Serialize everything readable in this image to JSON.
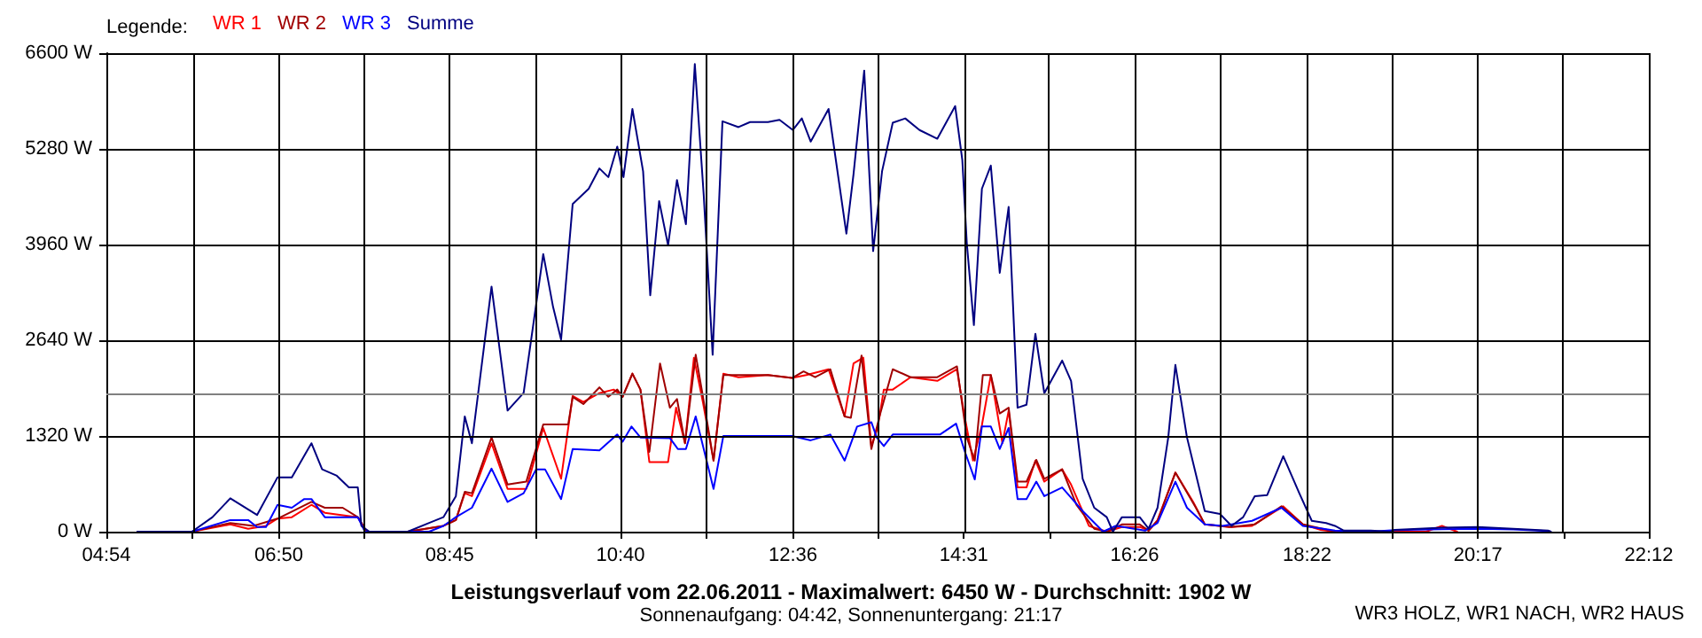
{
  "chart_data": {
    "type": "line",
    "title": "Leistungsverlauf vom 22.06.2011 - Maximalwert: 6450 W - Durchschnitt: 1902 W",
    "subtitle": "Sonnenaufgang: 04:42, Sonnenuntergang: 21:17",
    "legend_title": "Legende:",
    "annotations": [
      "WR3 HOLZ, WR1 NACH, WR2 HAUS"
    ],
    "xlim": [
      4.9,
      22.2
    ],
    "xticks": [
      {
        "value": 4.9,
        "label": "04:54"
      },
      {
        "value": 5.8667,
        "label": null
      },
      {
        "value": 6.8333,
        "label": "06:50"
      },
      {
        "value": 7.7917,
        "label": null
      },
      {
        "value": 8.75,
        "label": "08:45"
      },
      {
        "value": 9.7083,
        "label": null
      },
      {
        "value": 10.6667,
        "label": "10:40"
      },
      {
        "value": 11.6333,
        "label": null
      },
      {
        "value": 12.6,
        "label": "12:36"
      },
      {
        "value": 13.5583,
        "label": null
      },
      {
        "value": 14.5167,
        "label": "14:31"
      },
      {
        "value": 15.475,
        "label": null
      },
      {
        "value": 16.4333,
        "label": "16:26"
      },
      {
        "value": 17.4,
        "label": null
      },
      {
        "value": 18.3667,
        "label": "18:22"
      },
      {
        "value": 19.325,
        "label": null
      },
      {
        "value": 20.2833,
        "label": "20:17"
      },
      {
        "value": 21.2417,
        "label": null
      },
      {
        "value": 22.2,
        "label": "22:12"
      }
    ],
    "ylim": [
      0,
      6600
    ],
    "yticks": [
      {
        "value": 0,
        "label": "0 W"
      },
      {
        "value": 1320,
        "label": "1320 W"
      },
      {
        "value": 2640,
        "label": "2640 W"
      },
      {
        "value": 3960,
        "label": "3960 W"
      },
      {
        "value": 5280,
        "label": "5280 W"
      },
      {
        "value": 6600,
        "label": "6600 W"
      }
    ],
    "grid": true,
    "legend": "top left",
    "ref_lines": [
      {
        "axis": "y",
        "value": 1902,
        "color": "#808080"
      }
    ],
    "series": [
      {
        "name": "WR 1",
        "color": "#ff0000",
        "x": [
          5.25,
          5.86,
          6.29,
          6.49,
          6.69,
          6.82,
          6.98,
          7.2,
          7.35,
          7.72,
          7.82,
          8.28,
          8.68,
          8.82,
          8.92,
          9.0,
          9.22,
          9.4,
          9.61,
          9.8,
          10.0,
          10.13,
          10.25,
          10.43,
          10.59,
          10.69,
          10.8,
          10.89,
          10.99,
          11.2,
          11.29,
          11.39,
          11.49,
          11.59,
          11.71,
          11.82,
          11.99,
          12.32,
          12.59,
          12.75,
          13.0,
          13.18,
          13.28,
          13.39,
          13.48,
          13.55,
          13.62,
          13.72,
          13.92,
          14.22,
          14.44,
          14.52,
          14.62,
          14.72,
          14.82,
          14.95,
          15.02,
          15.12,
          15.22,
          15.32,
          15.42,
          15.62,
          15.72,
          15.92,
          16.12,
          16.29,
          16.49,
          16.59,
          16.69,
          16.89,
          17.09,
          17.22,
          17.49,
          17.75,
          18.1,
          18.32,
          18.52,
          18.68,
          19.7,
          19.88,
          20.05
        ],
        "values": [
          0,
          0,
          100,
          40,
          80,
          180,
          200,
          370,
          260,
          200,
          0,
          0,
          80,
          160,
          530,
          490,
          1220,
          590,
          590,
          1430,
          730,
          1870,
          1790,
          1910,
          1960,
          1860,
          2180,
          1960,
          960,
          960,
          1710,
          1220,
          2400,
          1790,
          980,
          2180,
          2130,
          2160,
          2120,
          2160,
          2240,
          1590,
          2320,
          2400,
          1180,
          1430,
          1960,
          1960,
          2130,
          2080,
          2240,
          1630,
          980,
          1470,
          2160,
          1220,
          1670,
          610,
          610,
          980,
          690,
          860,
          650,
          80,
          0,
          65,
          65,
          15,
          160,
          815,
          410,
          100,
          65,
          80,
          350,
          100,
          25,
          0,
          0,
          80,
          0
        ]
      },
      {
        "name": "WR 2",
        "color": "#a00000",
        "x": [
          5.25,
          5.86,
          6.29,
          6.55,
          6.82,
          7.2,
          7.35,
          7.55,
          7.72,
          7.82,
          8.28,
          8.68,
          8.82,
          8.92,
          9.0,
          9.22,
          9.4,
          9.61,
          9.8,
          10.08,
          10.13,
          10.25,
          10.43,
          10.53,
          10.63,
          10.69,
          10.8,
          10.89,
          10.99,
          11.11,
          11.22,
          11.3,
          11.39,
          11.51,
          11.59,
          11.71,
          11.82,
          12.32,
          12.59,
          12.72,
          12.85,
          13.02,
          13.18,
          13.25,
          13.37,
          13.48,
          13.58,
          13.72,
          13.92,
          14.22,
          14.44,
          14.55,
          14.64,
          14.73,
          14.82,
          14.92,
          15.02,
          15.12,
          15.22,
          15.33,
          15.42,
          15.62,
          15.78,
          15.98,
          16.12,
          16.29,
          16.49,
          16.59,
          16.69,
          16.89,
          17.12,
          17.22,
          17.52,
          17.78,
          18.08,
          18.32,
          18.68
        ],
        "values": [
          0,
          0,
          120,
          80,
          180,
          410,
          330,
          330,
          200,
          0,
          0,
          80,
          160,
          550,
          530,
          1300,
          650,
          690,
          1480,
          1480,
          1860,
          1760,
          1990,
          1860,
          1960,
          1860,
          2180,
          1960,
          1100,
          2320,
          1710,
          1830,
          1220,
          2440,
          1870,
          980,
          2160,
          2160,
          2120,
          2210,
          2130,
          2240,
          1590,
          1570,
          2430,
          1140,
          1630,
          2240,
          2130,
          2130,
          2280,
          1300,
          980,
          2160,
          2160,
          1630,
          1710,
          690,
          690,
          990,
          730,
          860,
          370,
          40,
          0,
          100,
          100,
          15,
          150,
          815,
          330,
          100,
          65,
          100,
          350,
          100,
          0
        ]
      },
      {
        "name": "WR 3",
        "color": "#0000ff",
        "x": [
          5.25,
          5.86,
          6.29,
          6.49,
          6.59,
          6.69,
          6.82,
          6.98,
          7.12,
          7.2,
          7.35,
          7.72,
          7.8,
          8.52,
          8.68,
          8.82,
          9.0,
          9.22,
          9.4,
          9.58,
          9.72,
          9.82,
          10.0,
          10.13,
          10.43,
          10.63,
          10.69,
          10.79,
          10.89,
          11.22,
          11.31,
          11.4,
          11.51,
          11.6,
          11.71,
          11.82,
          12.59,
          12.8,
          13.02,
          13.18,
          13.32,
          13.48,
          13.54,
          13.62,
          13.72,
          14.25,
          14.43,
          14.53,
          14.64,
          14.72,
          14.82,
          14.92,
          15.02,
          15.12,
          15.22,
          15.33,
          15.42,
          15.62,
          15.85,
          16.08,
          16.22,
          16.55,
          16.69,
          16.89,
          17.02,
          17.22,
          17.42,
          17.75,
          18.08,
          18.32,
          18.55,
          18.68,
          19.08,
          19.35,
          19.88,
          20.28,
          20.68,
          21.07,
          21.1
        ],
        "values": [
          0,
          0,
          160,
          160,
          65,
          65,
          370,
          330,
          450,
          450,
          200,
          200,
          0,
          0,
          80,
          200,
          330,
          870,
          410,
          530,
          860,
          860,
          450,
          1140,
          1120,
          1340,
          1240,
          1450,
          1300,
          1290,
          1140,
          1140,
          1590,
          1140,
          590,
          1320,
          1320,
          1260,
          1340,
          980,
          1450,
          1510,
          1300,
          1180,
          1340,
          1340,
          1490,
          1100,
          720,
          1450,
          1450,
          1140,
          1430,
          450,
          450,
          690,
          490,
          610,
          285,
          0,
          80,
          15,
          120,
          690,
          330,
          100,
          80,
          150,
          330,
          80,
          40,
          15,
          0,
          20,
          35,
          40,
          30,
          10,
          0
        ]
      },
      {
        "name": "Summe",
        "color": "#000080",
        "x": [
          5.25,
          5.86,
          6.09,
          6.29,
          6.59,
          6.82,
          6.98,
          7.2,
          7.32,
          7.48,
          7.62,
          7.72,
          7.76,
          7.85,
          8.28,
          8.52,
          8.68,
          8.82,
          8.92,
          9.0,
          9.22,
          9.4,
          9.58,
          9.8,
          9.91,
          10.0,
          10.13,
          10.31,
          10.43,
          10.53,
          10.63,
          10.7,
          10.8,
          10.92,
          11.0,
          11.1,
          11.2,
          11.3,
          11.4,
          11.5,
          11.6,
          11.7,
          11.81,
          11.99,
          12.12,
          12.32,
          12.45,
          12.6,
          12.7,
          12.8,
          13.0,
          13.2,
          13.28,
          13.4,
          13.5,
          13.6,
          13.72,
          13.86,
          14.02,
          14.22,
          14.42,
          14.5,
          14.55,
          14.63,
          14.72,
          14.82,
          14.92,
          15.02,
          15.12,
          15.22,
          15.32,
          15.42,
          15.62,
          15.72,
          15.85,
          15.98,
          16.12,
          16.19,
          16.29,
          16.49,
          16.59,
          16.69,
          16.81,
          16.89,
          17.02,
          17.22,
          17.39,
          17.52,
          17.65,
          17.78,
          17.92,
          18.1,
          18.28,
          18.42,
          18.58,
          18.68,
          18.78,
          19.08,
          19.3,
          19.35,
          19.88,
          20.28,
          20.68,
          21.07,
          21.1
        ],
        "values": [
          0,
          0,
          200,
          460,
          230,
          750,
          750,
          1220,
          860,
          775,
          610,
          610,
          80,
          0,
          0,
          120,
          200,
          490,
          1590,
          1220,
          3380,
          1670,
          1915,
          3830,
          3100,
          2650,
          4520,
          4730,
          5010,
          4890,
          5310,
          4890,
          5830,
          4970,
          3260,
          4560,
          3950,
          4850,
          4240,
          6450,
          4640,
          2440,
          5660,
          5580,
          5650,
          5650,
          5680,
          5540,
          5700,
          5380,
          5830,
          4110,
          4930,
          6360,
          3870,
          4970,
          5640,
          5700,
          5540,
          5420,
          5870,
          5130,
          3990,
          2850,
          4730,
          5050,
          3570,
          4480,
          1710,
          1750,
          2730,
          1910,
          2360,
          2080,
          730,
          330,
          200,
          0,
          200,
          200,
          40,
          330,
          1300,
          2300,
          1300,
          285,
          245,
          80,
          200,
          490,
          505,
          1040,
          530,
          150,
          120,
          80,
          15,
          15,
          0,
          25,
          55,
          65,
          40,
          15,
          0
        ]
      }
    ]
  }
}
